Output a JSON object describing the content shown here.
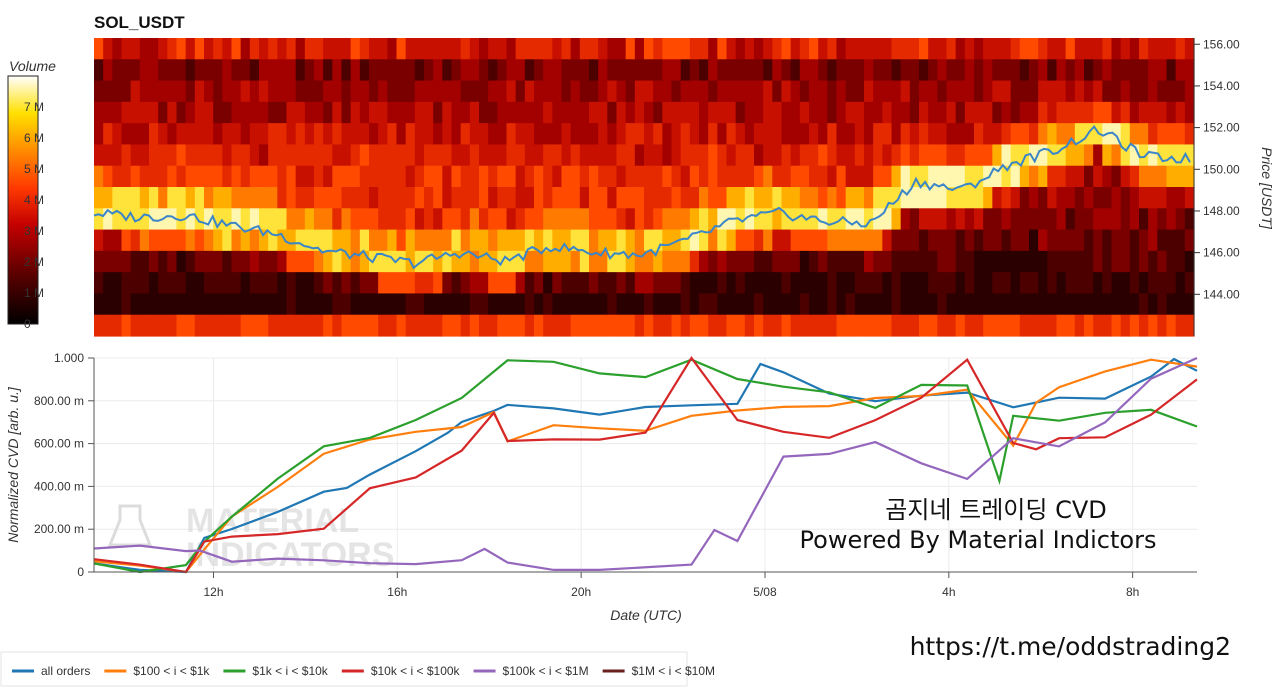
{
  "chart_data": [
    {
      "type": "heatmap",
      "title": "SOL_USDT",
      "ylabel": "Price [USDT]",
      "ylim": [
        142.0,
        156.3
      ],
      "y_ticks": [
        "156.00",
        "154.00",
        "152.00",
        "150.00",
        "148.00",
        "146.00",
        "144.00"
      ],
      "colorbar": {
        "title": "Volume",
        "ticks": [
          "7 M",
          "6 M",
          "5 M",
          "4 M",
          "3 M",
          "2 M",
          "1 M",
          "0"
        ],
        "range": [
          0,
          8
        ]
      },
      "price_line": {
        "x": [
          0,
          1,
          2,
          3,
          4,
          5,
          6,
          7,
          8,
          9,
          10,
          11,
          12,
          13,
          14,
          15,
          16,
          17,
          18,
          19,
          20,
          21,
          22,
          23,
          24
        ],
        "y": [
          147.9,
          147.7,
          147.8,
          147.3,
          146.9,
          146.1,
          145.8,
          145.5,
          146.0,
          145.6,
          146.3,
          146.0,
          145.9,
          146.6,
          147.5,
          147.9,
          147.5,
          147.4,
          149.4,
          149.0,
          150.2,
          150.9,
          151.9,
          150.6,
          150.5
        ]
      }
    },
    {
      "type": "line",
      "xlabel": "Date (UTC)",
      "ylabel": "Normalized CVD [arb. u.]",
      "ylim": [
        0,
        1.0
      ],
      "x_ticks": [
        "12h",
        "16h",
        "20h",
        "5/08",
        "4h",
        "8h"
      ],
      "y_ticks": [
        "0",
        "200.00 m",
        "400.00 m",
        "600.00 m",
        "800.00 m",
        "1.000"
      ],
      "series": [
        {
          "name": "all orders",
          "color": "#1f77b4",
          "x": [
            0,
            1,
            2,
            2.4,
            3,
            4,
            5,
            5.5,
            6,
            7,
            7.7,
            8,
            8.7,
            9,
            10,
            11,
            12,
            13,
            14,
            14.5,
            15,
            16,
            17,
            18,
            19,
            20,
            21,
            22,
            23,
            23.5,
            24
          ],
          "y": [
            0.04,
            0.02,
            0.0,
            0.15,
            0.21,
            0.29,
            0.37,
            0.38,
            0.45,
            0.55,
            0.64,
            0.7,
            0.74,
            0.78,
            0.77,
            0.73,
            0.77,
            0.78,
            0.8,
            0.96,
            0.92,
            0.83,
            0.79,
            0.82,
            0.83,
            0.76,
            0.82,
            0.82,
            0.9,
            0.98,
            0.94
          ]
        },
        {
          "name": "$100 < i < $1k",
          "color": "#ff7f0e",
          "x": [
            0,
            1,
            2,
            2.4,
            3,
            4,
            5,
            6,
            7,
            8,
            8.7,
            9,
            10,
            11,
            12,
            13,
            14,
            15,
            16,
            17,
            18,
            19,
            20,
            20.5,
            21,
            22,
            23,
            24
          ],
          "y": [
            0.05,
            0.02,
            0.0,
            0.12,
            0.25,
            0.41,
            0.56,
            0.63,
            0.65,
            0.68,
            0.74,
            0.6,
            0.68,
            0.66,
            0.66,
            0.72,
            0.76,
            0.76,
            0.77,
            0.8,
            0.82,
            0.84,
            0.6,
            0.8,
            0.86,
            0.95,
            0.98,
            0.96
          ]
        },
        {
          "name": "$1k < i < $10k",
          "color": "#2ca02c",
          "x": [
            0,
            1,
            2,
            2.4,
            3,
            4,
            5,
            6,
            7,
            8,
            9,
            10,
            11,
            12,
            13,
            14,
            15,
            16,
            17,
            18,
            19,
            19.7,
            20,
            21,
            22,
            23,
            24
          ],
          "y": [
            0.04,
            0.01,
            0.02,
            0.14,
            0.25,
            0.44,
            0.58,
            0.64,
            0.7,
            0.8,
            1.0,
            0.97,
            0.94,
            0.91,
            0.98,
            0.9,
            0.86,
            0.83,
            0.76,
            0.86,
            0.88,
            0.42,
            0.74,
            0.72,
            0.74,
            0.75,
            0.68
          ]
        },
        {
          "name": "$10k < i < $100k",
          "color": "#d62728",
          "x": [
            0,
            1,
            2,
            2.4,
            3,
            4,
            5,
            6,
            7,
            8,
            8.7,
            9,
            10,
            11,
            12,
            13,
            14,
            15,
            16,
            17,
            18,
            19,
            20,
            20.5,
            21,
            22,
            23,
            24
          ],
          "y": [
            0.06,
            0.02,
            0.0,
            0.15,
            0.18,
            0.19,
            0.2,
            0.38,
            0.44,
            0.58,
            0.74,
            0.62,
            0.62,
            0.63,
            0.66,
            1.0,
            0.71,
            0.64,
            0.62,
            0.7,
            0.8,
            1.0,
            0.6,
            0.56,
            0.62,
            0.62,
            0.75,
            0.9
          ]
        },
        {
          "name": "$100k < i < $1M",
          "color": "#9467bd",
          "x": [
            0,
            1,
            2,
            2.3,
            3,
            4,
            5,
            6,
            7,
            8,
            8.5,
            9,
            10,
            11,
            13,
            13.5,
            14,
            15,
            16,
            17,
            18,
            19,
            20,
            21,
            22,
            23,
            24
          ],
          "y": [
            0.11,
            0.13,
            0.1,
            0.1,
            0.06,
            0.06,
            0.06,
            0.04,
            0.04,
            0.06,
            0.1,
            0.05,
            0.0,
            0.0,
            0.02,
            0.2,
            0.15,
            0.55,
            0.56,
            0.6,
            0.52,
            0.45,
            0.62,
            0.58,
            0.7,
            0.9,
            1.0
          ]
        },
        {
          "name": "$1M < i < $10M",
          "color": "#6b1f1f",
          "x": [],
          "y": []
        }
      ]
    }
  ],
  "overlay": {
    "line1": "곰지네 트레이딩 CVD",
    "line2": "Powered By Material Indictors",
    "link": "https://t.me/oddstrading2",
    "watermark1": "MATERIAL",
    "watermark2": "INDICATORS"
  }
}
